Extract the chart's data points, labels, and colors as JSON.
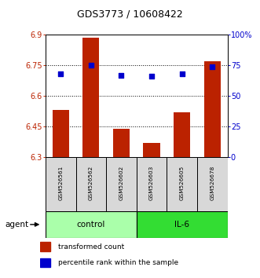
{
  "title": "GDS3773 / 10608422",
  "samples": [
    "GSM526561",
    "GSM526562",
    "GSM526602",
    "GSM526603",
    "GSM526605",
    "GSM526678"
  ],
  "bar_values": [
    6.53,
    6.885,
    6.44,
    6.37,
    6.52,
    6.77
  ],
  "percentile_values": [
    68,
    75,
    67,
    66,
    68,
    74
  ],
  "bar_color": "#bb2200",
  "dot_color": "#0000cc",
  "ylim_left": [
    6.3,
    6.9
  ],
  "ylim_right": [
    0,
    100
  ],
  "yticks_left": [
    6.3,
    6.45,
    6.6,
    6.75,
    6.9
  ],
  "ytick_labels_left": [
    "6.3",
    "6.45",
    "6.6",
    "6.75",
    "6.9"
  ],
  "yticks_right": [
    0,
    25,
    50,
    75,
    100
  ],
  "ytick_labels_right": [
    "0",
    "25",
    "50",
    "75",
    "100%"
  ],
  "groups": [
    {
      "label": "control",
      "indices": [
        0,
        1,
        2
      ],
      "color": "#aaffaa"
    },
    {
      "label": "IL-6",
      "indices": [
        3,
        4,
        5
      ],
      "color": "#33dd33"
    }
  ],
  "agent_label": "agent",
  "legend_bar_label": "transformed count",
  "legend_dot_label": "percentile rank within the sample",
  "grid_lines": [
    6.45,
    6.6,
    6.75
  ],
  "bar_width": 0.55,
  "bar_bottom": 6.3
}
